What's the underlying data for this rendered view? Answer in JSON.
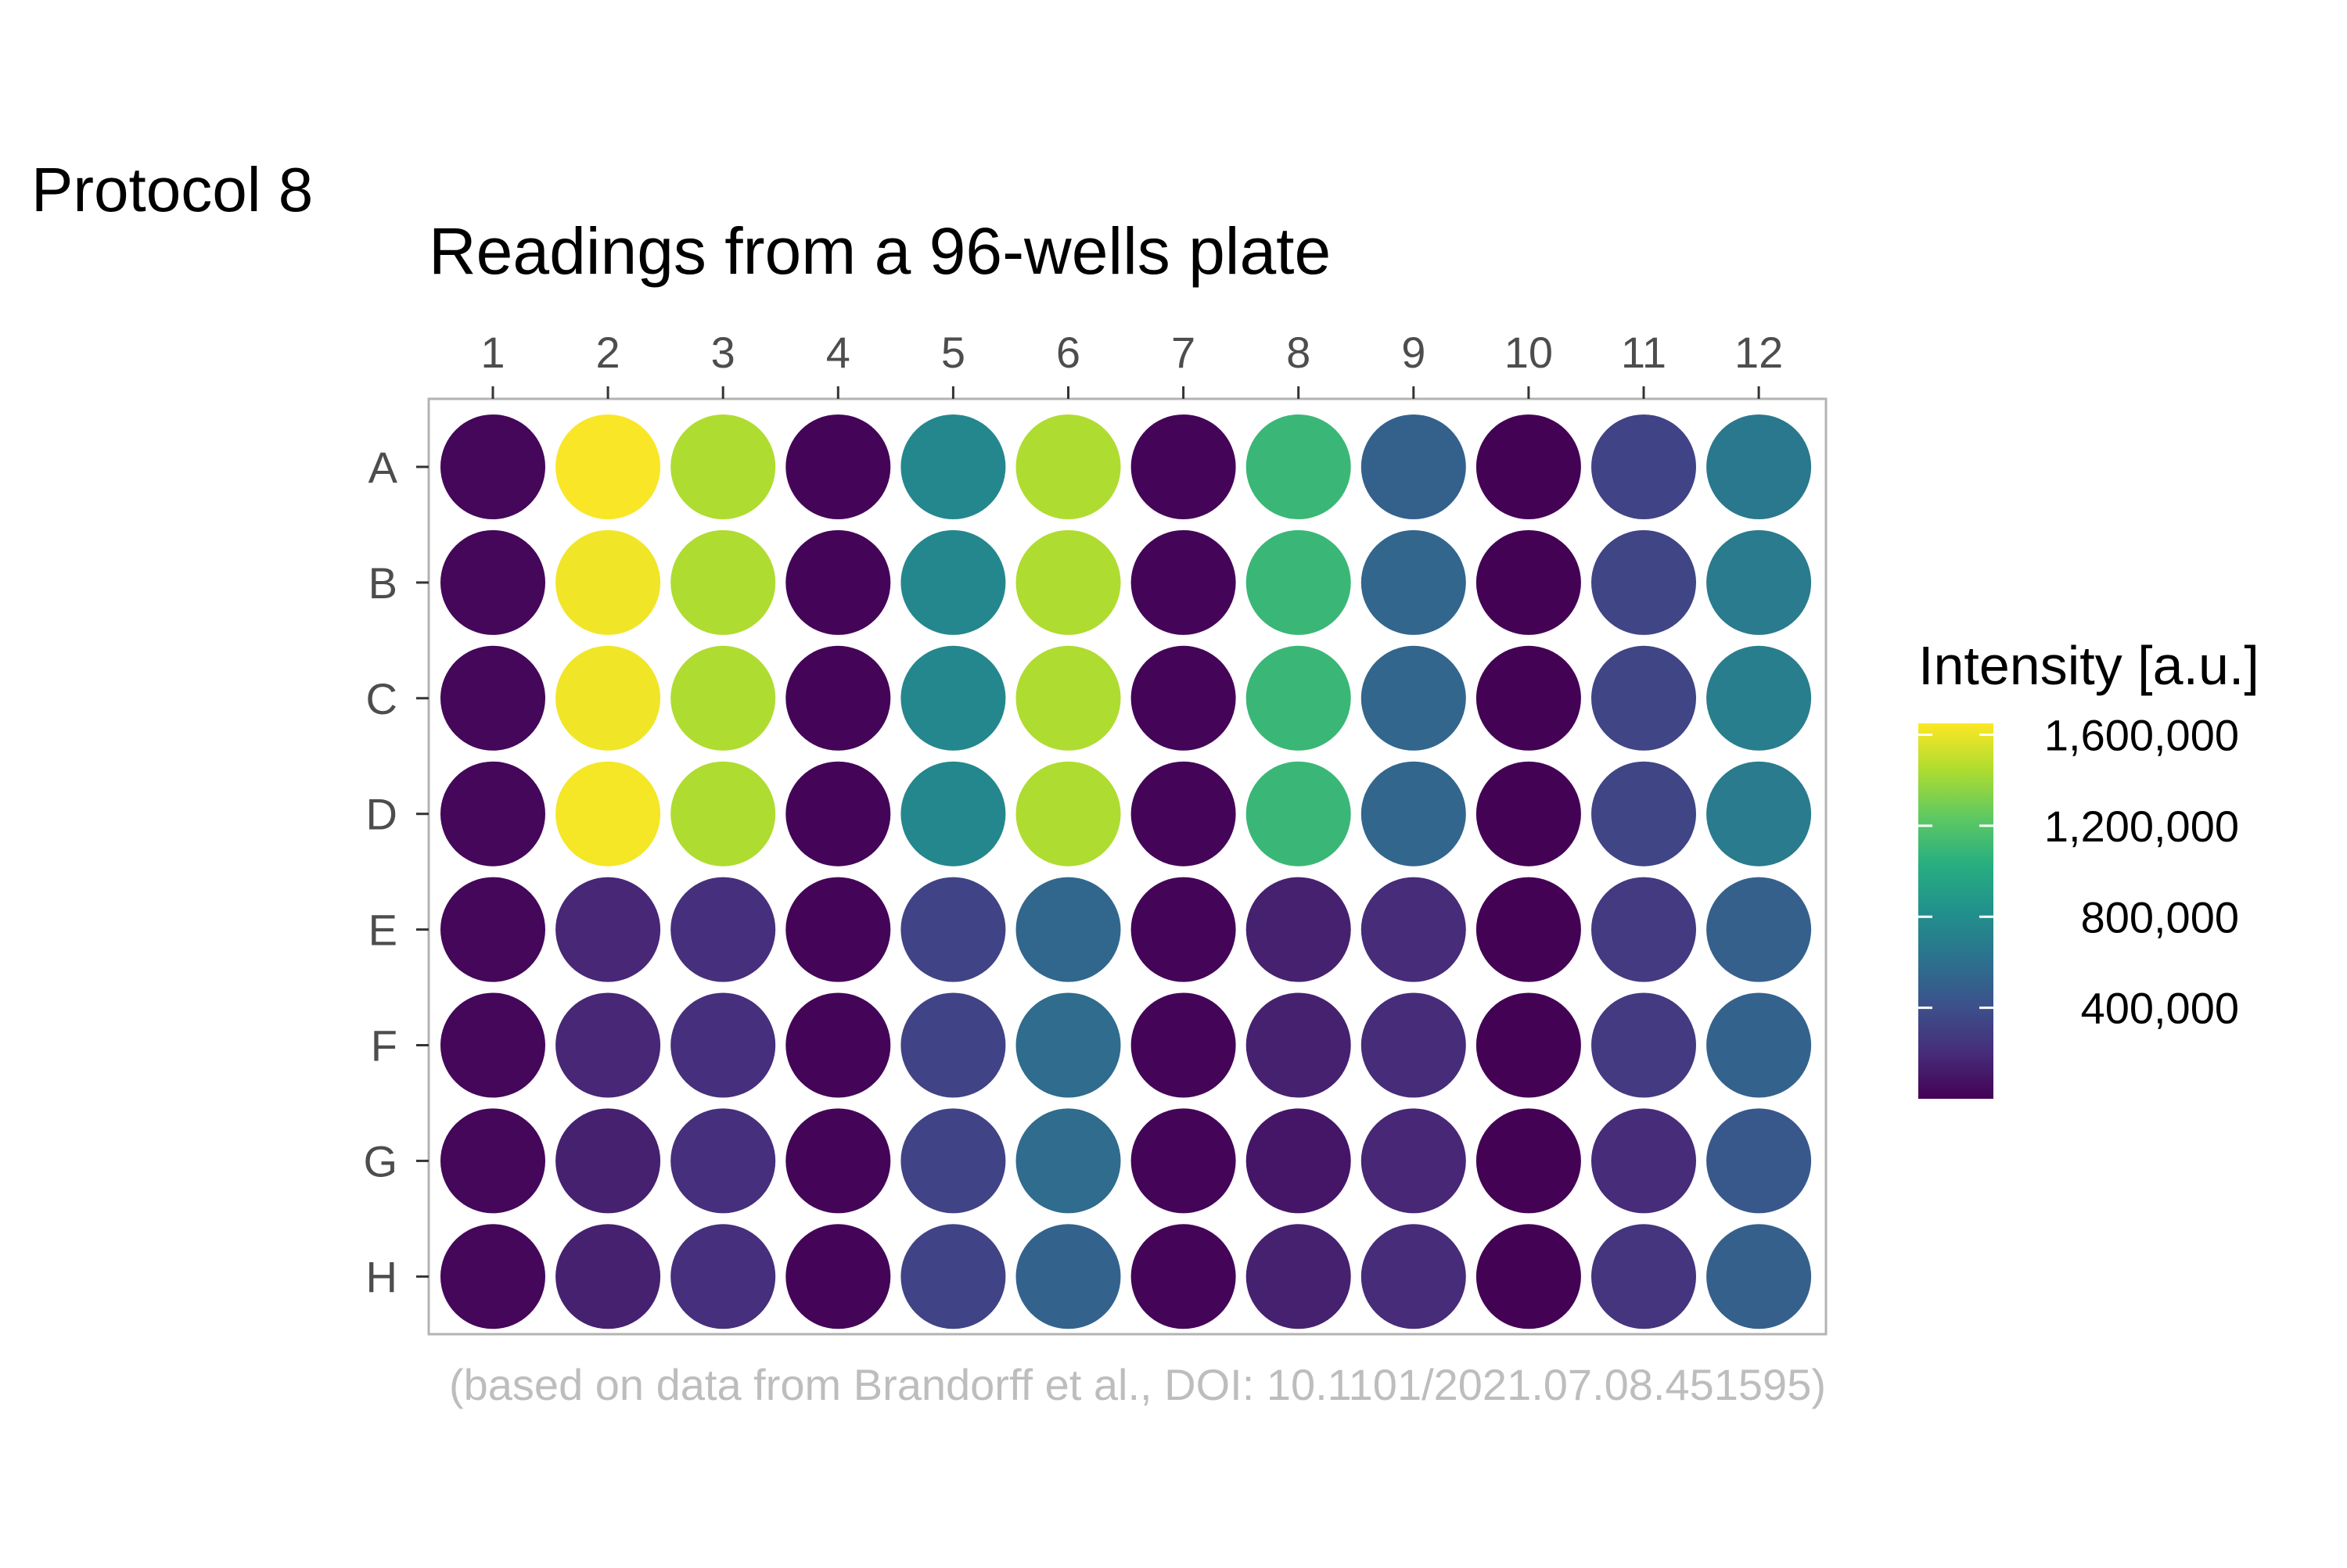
{
  "page_label": "Protocol 8",
  "chart_data": {
    "type": "heatmap",
    "title": "Readings from a 96-wells plate",
    "caption": "(based on data from Brandorff et al., DOI: 10.1101/2021.07.08.451595)",
    "columns": [
      "1",
      "2",
      "3",
      "4",
      "5",
      "6",
      "7",
      "8",
      "9",
      "10",
      "11",
      "12"
    ],
    "rows": [
      "A",
      "B",
      "C",
      "D",
      "E",
      "F",
      "G",
      "H"
    ],
    "column_axis_position": "top",
    "legend": {
      "title": "Intensity [a.u.]",
      "placement": "right",
      "ticks": [
        400000,
        800000,
        1200000,
        1600000
      ],
      "tick_labels": [
        "400,000",
        "800,000",
        "1,200,000",
        "1,600,000"
      ],
      "min": 0,
      "max": 1650000,
      "colormap": "viridis"
    },
    "values": [
      [
        30000,
        1640000,
        1450000,
        20000,
        760000,
        1450000,
        20000,
        1100000,
        510000,
        5000,
        330000,
        660000
      ],
      [
        30000,
        1620000,
        1450000,
        20000,
        760000,
        1450000,
        20000,
        1100000,
        540000,
        5000,
        340000,
        680000
      ],
      [
        30000,
        1620000,
        1450000,
        20000,
        760000,
        1450000,
        20000,
        1100000,
        540000,
        5000,
        340000,
        700000
      ],
      [
        30000,
        1630000,
        1450000,
        20000,
        760000,
        1450000,
        20000,
        1100000,
        540000,
        5000,
        340000,
        680000
      ],
      [
        30000,
        180000,
        220000,
        20000,
        330000,
        550000,
        20000,
        150000,
        200000,
        5000,
        280000,
        500000
      ],
      [
        30000,
        180000,
        220000,
        20000,
        330000,
        580000,
        20000,
        150000,
        200000,
        5000,
        280000,
        520000
      ],
      [
        30000,
        150000,
        220000,
        20000,
        330000,
        580000,
        20000,
        100000,
        180000,
        5000,
        200000,
        450000
      ],
      [
        30000,
        150000,
        220000,
        20000,
        330000,
        520000,
        20000,
        150000,
        200000,
        5000,
        250000,
        500000
      ]
    ]
  }
}
